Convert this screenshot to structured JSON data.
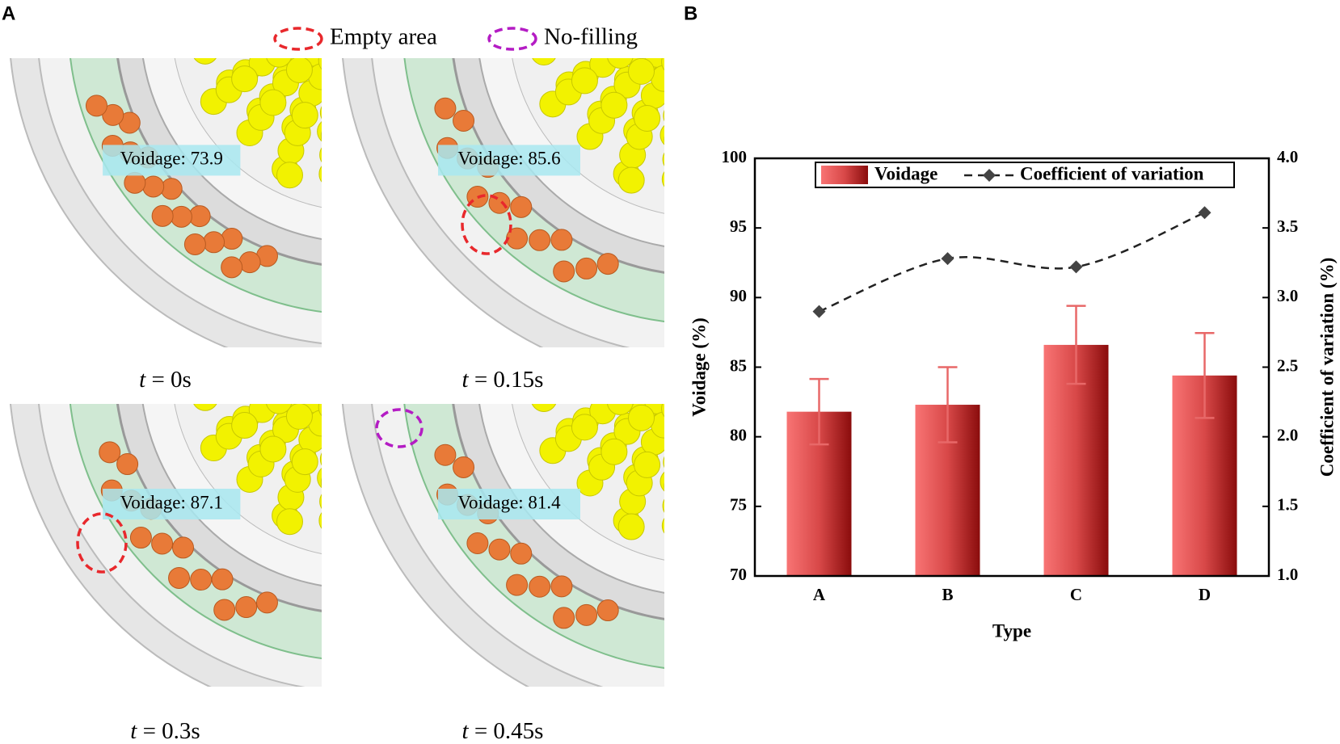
{
  "panel_a": {
    "label": "A",
    "legend": [
      "Empty area",
      "No-filling"
    ],
    "images": [
      {
        "voidage_label": "Voidage: 73.9",
        "symbol": "t",
        "caption": "= 0s"
      },
      {
        "voidage_label": "Voidage: 85.6",
        "symbol": "t",
        "caption": "= 0.15s"
      },
      {
        "voidage_label": "Voidage: 87.1",
        "symbol": "t",
        "caption": "= 0.3s"
      },
      {
        "voidage_label": "Voidage: 81.4",
        "symbol": "t",
        "caption": "= 0.45s"
      }
    ]
  },
  "chart_data": {
    "type": "bar",
    "panel_label": "B",
    "xlabel": "Type",
    "ylabel": "Voidage (%)",
    "y2label": "Coefficient of variation (%)",
    "categories": [
      "A",
      "B",
      "C",
      "D"
    ],
    "series": [
      {
        "name": "Voidage",
        "color": "#e84c4c",
        "values": [
          81.8,
          82.3,
          86.6,
          84.4
        ],
        "errors": [
          2.35,
          2.7,
          2.8,
          3.05
        ]
      },
      {
        "name": "Coefficient of variation",
        "type": "line",
        "color": "#222222",
        "axis": "y2",
        "values": [
          2.9,
          3.28,
          3.22,
          3.61
        ]
      }
    ],
    "ylim": [
      70,
      100
    ],
    "yticks": [
      70,
      75,
      80,
      85,
      90,
      95,
      100
    ],
    "y2lim": [
      1.0,
      4.0
    ],
    "y2ticks": [
      {
        "value": 1.0,
        "label": "1.0"
      },
      {
        "value": 1.5,
        "label": "1.5"
      },
      {
        "value": 2.0,
        "label": "2.0"
      },
      {
        "value": 2.5,
        "label": "2.5"
      },
      {
        "value": 3.0,
        "label": "3.0"
      },
      {
        "value": 3.5,
        "label": "3.5"
      },
      {
        "value": 4.0,
        "label": "4.0"
      }
    ],
    "legend": "top"
  }
}
